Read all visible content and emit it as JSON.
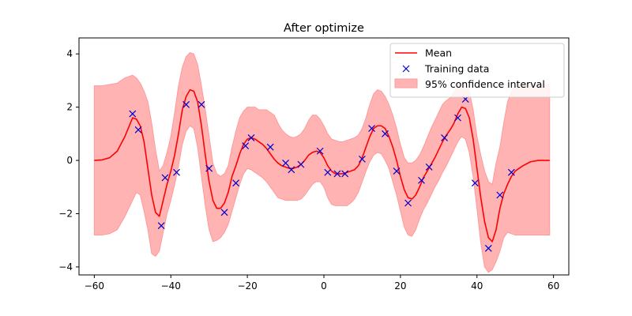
{
  "chart_data": {
    "type": "line",
    "title": "After optimize",
    "xlabel": "",
    "ylabel": "",
    "xlim": [
      -64,
      64
    ],
    "ylim": [
      -4.3,
      4.6
    ],
    "xticks": [
      -60,
      -40,
      -20,
      0,
      20,
      40,
      60
    ],
    "yticks": [
      -4,
      -2,
      0,
      2,
      4
    ],
    "xtick_labels": [
      "−60",
      "−40",
      "−20",
      "0",
      "20",
      "40",
      "60"
    ],
    "ytick_labels": [
      "−4",
      "−2",
      "0",
      "2",
      "4"
    ],
    "grid": false,
    "legend_position": "top-right",
    "legend": [
      "Mean",
      "Training data",
      "95% confidence interval"
    ],
    "colors": {
      "mean": "#ff0000",
      "training": "#0000cc",
      "band": "#ffb3b3",
      "band_edge": "#ff9a9a"
    },
    "series": [
      {
        "name": "Mean",
        "kind": "line",
        "x": [
          -60,
          -58,
          -56,
          -54,
          -52,
          -50,
          -49,
          -48,
          -47,
          -46,
          -45,
          -44,
          -43,
          -42,
          -41,
          -40,
          -39,
          -38,
          -37,
          -36,
          -35,
          -34,
          -33,
          -32,
          -31,
          -30,
          -29,
          -28,
          -27,
          -26,
          -25,
          -24,
          -23,
          -22,
          -21,
          -20,
          -19,
          -18,
          -17,
          -16,
          -15,
          -14,
          -13,
          -12,
          -11,
          -10,
          -9,
          -8,
          -7,
          -6,
          -5,
          -4,
          -3,
          -2,
          -1,
          0,
          1,
          2,
          3,
          4,
          5,
          6,
          7,
          8,
          9,
          10,
          11,
          12,
          13,
          14,
          15,
          16,
          17,
          18,
          19,
          20,
          21,
          22,
          23,
          24,
          25,
          26,
          27,
          28,
          29,
          30,
          31,
          32,
          33,
          34,
          35,
          36,
          37,
          38,
          39,
          40,
          41,
          42,
          43,
          44,
          45,
          46,
          47,
          48,
          49,
          50,
          52,
          54,
          56,
          58,
          59
        ],
        "y": [
          0.0,
          0.02,
          0.1,
          0.35,
          0.9,
          1.6,
          1.55,
          1.3,
          0.7,
          -0.3,
          -1.3,
          -1.95,
          -2.1,
          -1.5,
          -0.9,
          -0.4,
          0.2,
          1.0,
          1.9,
          2.4,
          2.65,
          2.6,
          2.2,
          1.3,
          0.2,
          -0.8,
          -1.5,
          -1.8,
          -1.8,
          -1.6,
          -1.2,
          -0.6,
          -0.2,
          0.25,
          0.6,
          0.8,
          0.85,
          0.8,
          0.7,
          0.6,
          0.45,
          0.25,
          0.05,
          -0.1,
          -0.2,
          -0.25,
          -0.3,
          -0.3,
          -0.25,
          -0.15,
          0.0,
          0.2,
          0.3,
          0.35,
          0.3,
          0.1,
          -0.2,
          -0.4,
          -0.5,
          -0.5,
          -0.5,
          -0.45,
          -0.4,
          -0.35,
          -0.2,
          0.1,
          0.5,
          0.9,
          1.2,
          1.3,
          1.3,
          1.2,
          0.9,
          0.5,
          0.0,
          -0.6,
          -1.1,
          -1.4,
          -1.45,
          -1.3,
          -1.0,
          -0.65,
          -0.4,
          -0.15,
          0.1,
          0.4,
          0.7,
          0.95,
          1.15,
          1.4,
          1.75,
          2.0,
          1.95,
          1.6,
          0.8,
          -0.3,
          -1.4,
          -2.3,
          -2.9,
          -3.05,
          -2.6,
          -1.8,
          -1.25,
          -0.9,
          -0.6,
          -0.4,
          -0.2,
          -0.05,
          0.0,
          0.0,
          0.0
        ],
        "color": "#ff0000"
      },
      {
        "name": "95% confidence interval",
        "kind": "band",
        "x": [
          -60,
          -58,
          -56,
          -54,
          -52,
          -50,
          -49,
          -48,
          -47,
          -46,
          -45,
          -44,
          -43,
          -42,
          -41,
          -40,
          -39,
          -38,
          -37,
          -36,
          -35,
          -34,
          -33,
          -32,
          -31,
          -30,
          -29,
          -28,
          -27,
          -26,
          -25,
          -24,
          -23,
          -22,
          -21,
          -20,
          -19,
          -18,
          -17,
          -16,
          -15,
          -14,
          -13,
          -12,
          -11,
          -10,
          -9,
          -8,
          -7,
          -6,
          -5,
          -4,
          -3,
          -2,
          -1,
          0,
          1,
          2,
          3,
          4,
          5,
          6,
          7,
          8,
          9,
          10,
          11,
          12,
          13,
          14,
          15,
          16,
          17,
          18,
          19,
          20,
          21,
          22,
          23,
          24,
          25,
          26,
          27,
          28,
          29,
          30,
          31,
          32,
          33,
          34,
          35,
          36,
          37,
          38,
          39,
          40,
          41,
          42,
          43,
          44,
          45,
          46,
          47,
          48,
          49,
          50,
          52,
          54,
          56,
          58,
          59
        ],
        "lower": [
          -2.8,
          -2.8,
          -2.75,
          -2.6,
          -2.1,
          -1.5,
          -1.2,
          -1.3,
          -1.9,
          -2.6,
          -3.5,
          -3.6,
          -3.4,
          -2.7,
          -2.0,
          -1.5,
          -0.9,
          -0.2,
          0.6,
          1.1,
          1.3,
          1.2,
          0.5,
          -0.6,
          -1.7,
          -2.6,
          -3.05,
          -3.0,
          -2.9,
          -2.7,
          -2.4,
          -1.9,
          -1.4,
          -0.9,
          -0.5,
          -0.3,
          -0.35,
          -0.45,
          -0.55,
          -0.65,
          -0.8,
          -1.0,
          -1.2,
          -1.4,
          -1.45,
          -1.5,
          -1.5,
          -1.5,
          -1.5,
          -1.45,
          -1.3,
          -1.1,
          -0.9,
          -0.8,
          -0.8,
          -1.0,
          -1.4,
          -1.65,
          -1.7,
          -1.7,
          -1.7,
          -1.7,
          -1.6,
          -1.45,
          -1.2,
          -0.8,
          -0.4,
          -0.05,
          0.2,
          0.3,
          0.25,
          0.0,
          -0.3,
          -0.8,
          -1.3,
          -1.9,
          -2.5,
          -2.8,
          -2.85,
          -2.6,
          -2.2,
          -1.85,
          -1.6,
          -1.3,
          -1.0,
          -0.75,
          -0.45,
          -0.2,
          0.1,
          0.4,
          0.7,
          0.9,
          0.8,
          0.3,
          -0.6,
          -1.8,
          -3.1,
          -4.0,
          -4.2,
          -4.1,
          -3.8,
          -3.4,
          -2.9,
          -2.7,
          -2.75,
          -2.8,
          -2.8,
          -2.8,
          -2.8,
          -2.8,
          -2.8
        ],
        "upper": [
          2.8,
          2.8,
          2.85,
          2.9,
          3.1,
          3.2,
          3.1,
          2.9,
          2.6,
          2.2,
          1.4,
          0.4,
          -0.4,
          -0.2,
          0.3,
          0.9,
          1.8,
          2.8,
          3.5,
          3.9,
          4.05,
          4.0,
          3.6,
          2.8,
          1.9,
          0.9,
          -0.1,
          -0.5,
          -0.6,
          -0.5,
          -0.2,
          0.5,
          1.1,
          1.6,
          1.85,
          2.0,
          2.0,
          2.0,
          1.9,
          1.9,
          1.9,
          1.8,
          1.7,
          1.4,
          1.15,
          1.0,
          0.9,
          0.85,
          0.9,
          1.0,
          1.2,
          1.5,
          1.7,
          1.7,
          1.55,
          1.3,
          1.0,
          0.8,
          0.75,
          0.7,
          0.7,
          0.75,
          0.8,
          0.85,
          0.95,
          1.2,
          1.6,
          2.1,
          2.5,
          2.65,
          2.6,
          2.4,
          2.1,
          1.7,
          1.2,
          0.6,
          0.1,
          -0.1,
          -0.1,
          0.0,
          0.2,
          0.5,
          0.85,
          1.2,
          1.5,
          1.8,
          2.1,
          2.25,
          2.35,
          2.55,
          2.75,
          2.9,
          2.9,
          2.6,
          1.9,
          0.9,
          0.2,
          -0.4,
          -0.8,
          -0.9,
          -0.1,
          0.5,
          1.4,
          2.2,
          2.6,
          2.8,
          2.85,
          2.85,
          2.85,
          2.85,
          2.85
        ],
        "color": "#ffb3b3"
      },
      {
        "name": "Training data",
        "kind": "scatter",
        "x": [
          -50,
          -48.5,
          -42.5,
          -41.5,
          -38.5,
          -36,
          -32,
          -30,
          -26,
          -23,
          -20.5,
          -19,
          -14,
          -10,
          -8.5,
          -6,
          -1,
          1,
          3.5,
          5.5,
          10,
          12.5,
          16,
          19,
          22,
          25.5,
          27.5,
          31.5,
          35,
          37,
          39.5,
          43,
          46,
          49
        ],
        "y": [
          1.75,
          1.15,
          -2.45,
          -0.65,
          -0.45,
          2.1,
          2.1,
          -0.3,
          -1.95,
          -0.85,
          0.55,
          0.85,
          0.5,
          -0.1,
          -0.35,
          -0.15,
          0.35,
          -0.45,
          -0.5,
          -0.5,
          0.05,
          1.2,
          1.0,
          -0.4,
          -1.6,
          -0.75,
          -0.25,
          0.85,
          1.6,
          2.3,
          -0.85,
          -3.3,
          -1.3,
          -0.45
        ],
        "color": "#0000cc"
      }
    ]
  }
}
